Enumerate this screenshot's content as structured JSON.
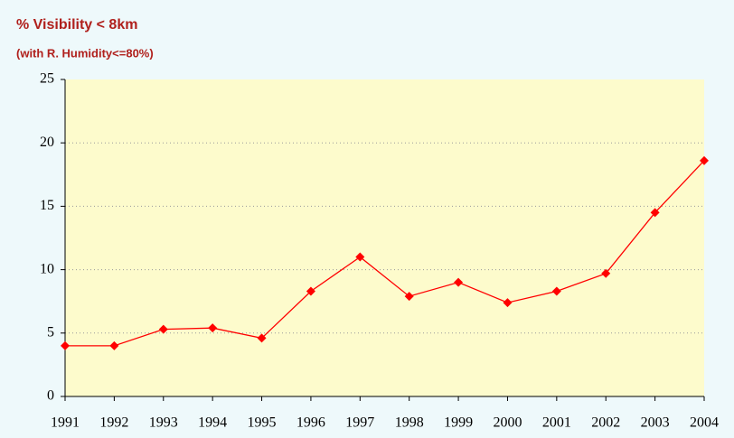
{
  "chart_data": {
    "type": "line",
    "title": "% Visibility < 8km",
    "subtitle": "(with R. Humidity<=80%)",
    "categories": [
      "1991",
      "1992",
      "1993",
      "1994",
      "1995",
      "1996",
      "1997",
      "1998",
      "1999",
      "2000",
      "2001",
      "2002",
      "2003",
      "2004"
    ],
    "values": [
      4.0,
      4.0,
      5.3,
      5.4,
      4.6,
      8.3,
      11.0,
      7.9,
      9.0,
      7.4,
      8.3,
      9.7,
      14.5,
      18.6
    ],
    "color": "#ff0000",
    "ylim": [
      0,
      25
    ],
    "yticks": [
      0,
      5,
      10,
      15,
      20,
      25
    ],
    "grid": true
  }
}
